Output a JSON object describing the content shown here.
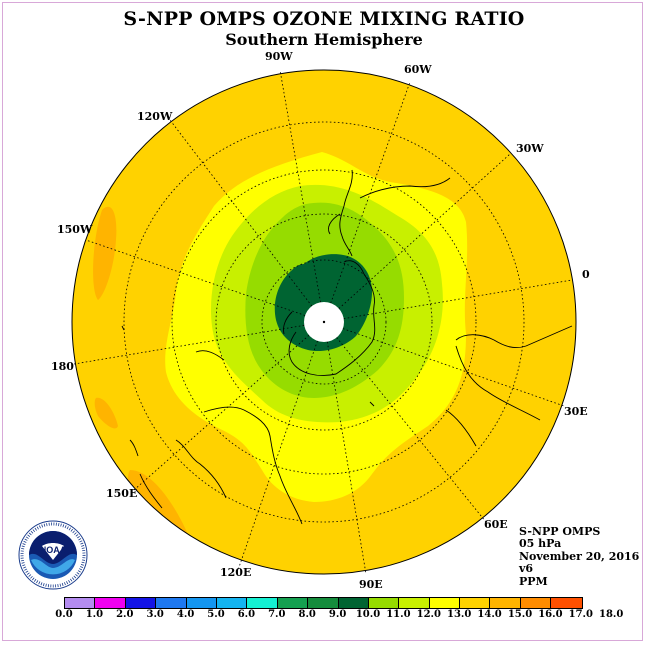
{
  "title": "S-NPP OMPS OZONE MIXING RATIO",
  "subtitle": "Southern Hemisphere",
  "longitude_labels": [
    {
      "id": "lon-90w",
      "text": "90W"
    },
    {
      "id": "lon-60w",
      "text": "60W"
    },
    {
      "id": "lon-120w",
      "text": "120W"
    },
    {
      "id": "lon-30w",
      "text": "30W"
    },
    {
      "id": "lon-150w",
      "text": "150W"
    },
    {
      "id": "lon-0",
      "text": "0"
    },
    {
      "id": "lon-180",
      "text": "180"
    },
    {
      "id": "lon-30e",
      "text": "30E"
    },
    {
      "id": "lon-150e",
      "text": "150E"
    },
    {
      "id": "lon-60e",
      "text": "60E"
    },
    {
      "id": "lon-120e",
      "text": "120E"
    },
    {
      "id": "lon-90e",
      "text": "90E"
    }
  ],
  "info": {
    "instrument": "S-NPP OMPS",
    "level": "05 hPa",
    "date": "November 20, 2016",
    "version": "v6",
    "units": "PPM"
  },
  "logo_text": "NOAA",
  "colorbar": {
    "ticks": [
      "0.0",
      "1.0",
      "2.0",
      "3.0",
      "4.0",
      "5.0",
      "6.0",
      "7.0",
      "8.0",
      "9.0",
      "10.0",
      "11.0",
      "12.0",
      "13.0",
      "14.0",
      "15.0",
      "16.0",
      "17.0",
      "18.0"
    ],
    "colors": [
      "#b48cf0",
      "#d8b4f0",
      "#f000f0",
      "#1414e6",
      "#1e78f0",
      "#1496f0",
      "#14b4f0",
      "#14f0d2",
      "#14a050",
      "#148c3c",
      "#006432",
      "#96dc00",
      "#c8f000",
      "#ffff00",
      "#ffd200",
      "#ffb400",
      "#ff8c00",
      "#ff5000",
      "#e60000",
      "#8c5a3c"
    ]
  },
  "chart_data": {
    "type": "heatmap",
    "projection": "polar stereographic, south pole",
    "quantity": "ozone mixing ratio",
    "units": "PPM",
    "level_hPa": 5,
    "date": "2016-11-20",
    "color_bins": [
      0,
      1,
      2,
      3,
      4,
      5,
      6,
      7,
      8,
      9,
      10,
      11,
      12,
      13,
      14,
      15,
      16,
      17,
      18
    ],
    "regions": [
      {
        "band": "13-14",
        "where": "mid and low latitudes"
      },
      {
        "band": "14-15",
        "where": "patches near 150W and 150E"
      },
      {
        "band": "12-13",
        "where": "ring around polar region"
      },
      {
        "band": "11-12",
        "where": "inner ring"
      },
      {
        "band": "10-11",
        "where": "ring near Antarctic coast"
      },
      {
        "band": "9-10",
        "where": "core over Antarctica, offset toward 60W"
      },
      {
        "band": "no data",
        "where": "south pole"
      }
    ]
  }
}
